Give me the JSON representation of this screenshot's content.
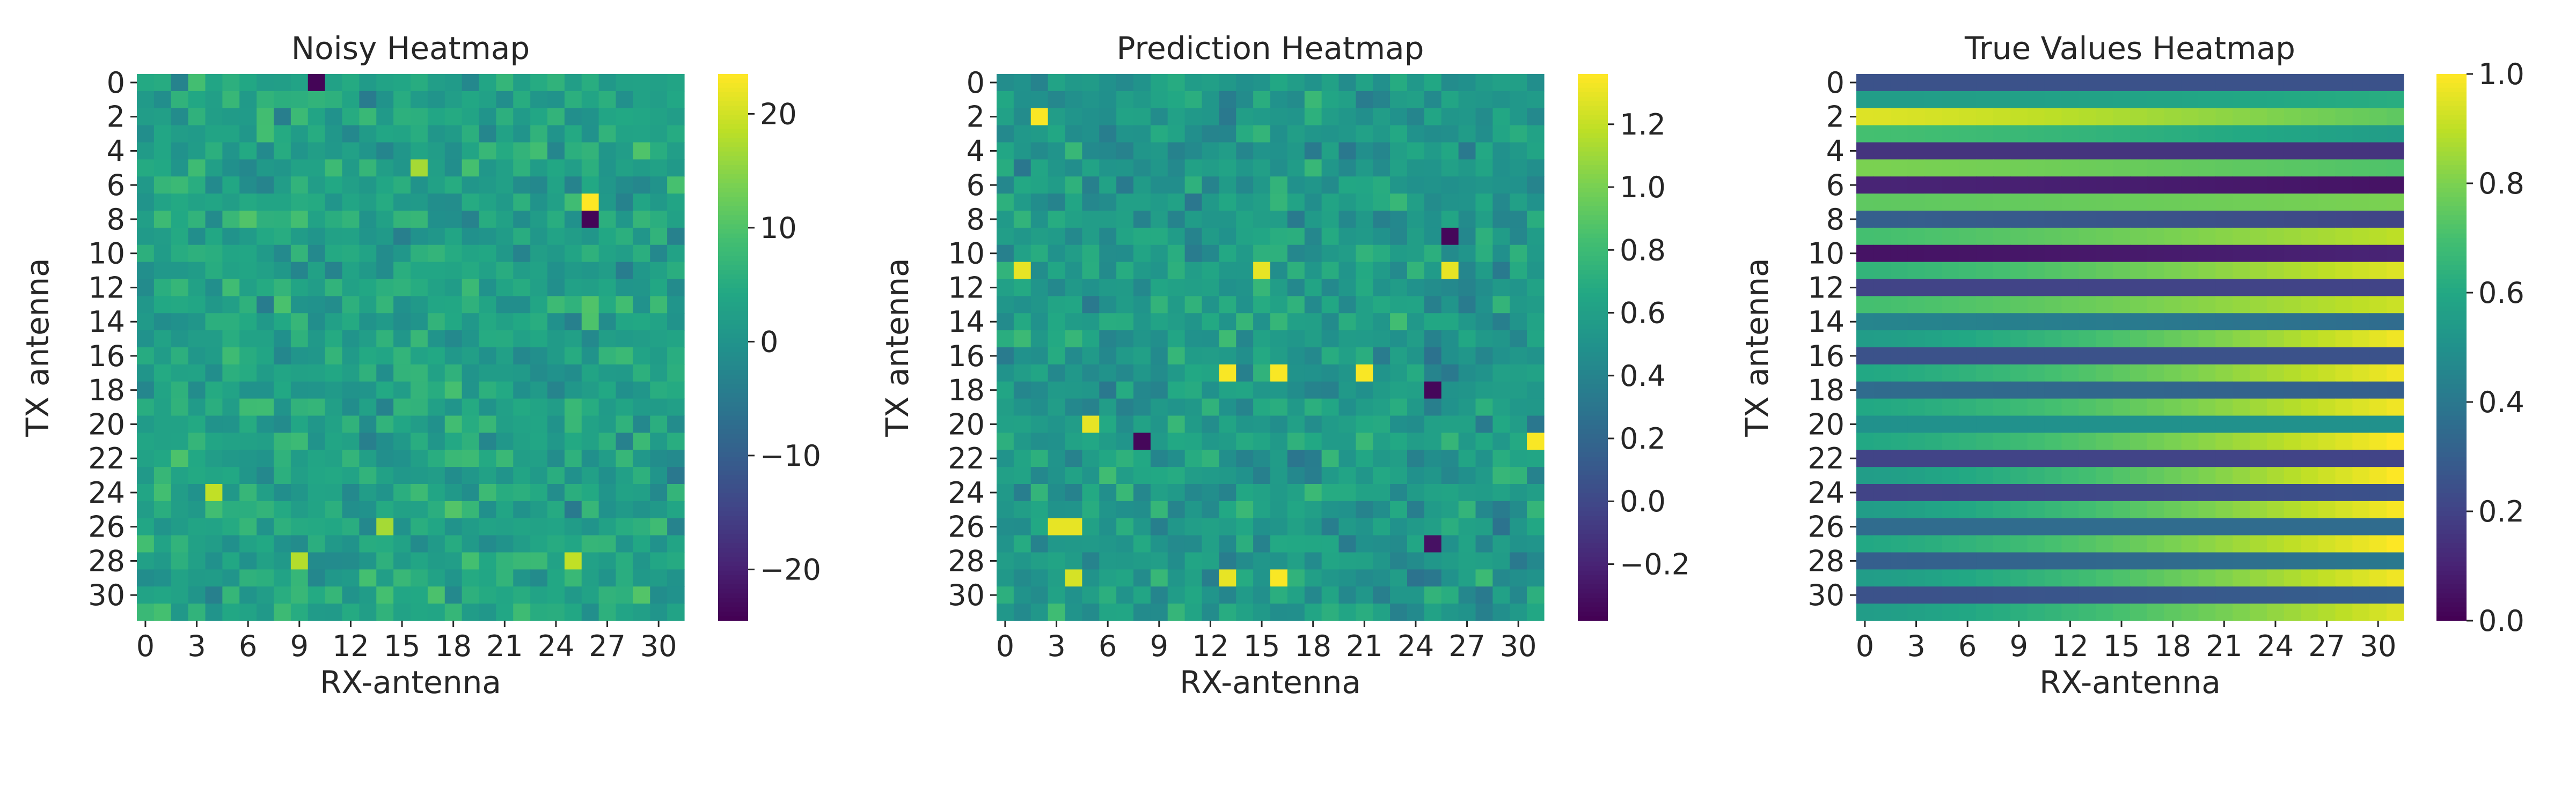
{
  "chart_data": [
    {
      "type": "heatmap",
      "title": "Noisy Heatmap",
      "xlabel": "RX-antenna",
      "ylabel": "TX antenna",
      "rows": 32,
      "cols": 32,
      "xticks": [
        0,
        3,
        6,
        9,
        12,
        15,
        18,
        21,
        24,
        27,
        30
      ],
      "yticks": [
        0,
        2,
        4,
        6,
        8,
        10,
        12,
        14,
        16,
        18,
        20,
        22,
        24,
        26,
        28,
        30
      ],
      "colorbar": {
        "range": [
          -24.5,
          23.5
        ],
        "ticks": [
          -20,
          -10,
          0,
          10,
          20
        ],
        "tick_labels": [
          "−20",
          "−10",
          "0",
          "10",
          "20"
        ],
        "colormap": "viridis"
      },
      "generator": {
        "kind": "noise",
        "mean": 3,
        "amp": 9,
        "seed": 7,
        "hot": [
          [
            7,
            26,
            23.5
          ],
          [
            8,
            26,
            -24
          ],
          [
            0,
            10,
            -24
          ],
          [
            24,
            4,
            19
          ],
          [
            28,
            9,
            18
          ],
          [
            28,
            25,
            19
          ],
          [
            5,
            16,
            17
          ],
          [
            26,
            14,
            17
          ]
        ]
      }
    },
    {
      "type": "heatmap",
      "title": "Prediction Heatmap",
      "xlabel": "RX-antenna",
      "ylabel": "TX antenna",
      "rows": 32,
      "cols": 32,
      "xticks": [
        0,
        3,
        6,
        9,
        12,
        15,
        18,
        21,
        24,
        27,
        30
      ],
      "yticks": [
        0,
        2,
        4,
        6,
        8,
        10,
        12,
        14,
        16,
        18,
        20,
        22,
        24,
        26,
        28,
        30
      ],
      "colorbar": {
        "range": [
          -0.38,
          1.36
        ],
        "ticks": [
          -0.2,
          0.0,
          0.2,
          0.4,
          0.6,
          0.8,
          1.0,
          1.2
        ],
        "tick_labels": [
          "−0.2",
          "0.0",
          "0.2",
          "0.4",
          "0.6",
          "0.8",
          "1.0",
          "1.2"
        ],
        "colormap": "viridis"
      },
      "generator": {
        "kind": "noise",
        "mean": 0.55,
        "amp": 0.32,
        "seed": 19,
        "hot": [
          [
            2,
            2,
            1.35
          ],
          [
            11,
            1,
            1.3
          ],
          [
            11,
            15,
            1.3
          ],
          [
            11,
            26,
            1.3
          ],
          [
            17,
            13,
            1.35
          ],
          [
            17,
            16,
            1.35
          ],
          [
            17,
            21,
            1.35
          ],
          [
            20,
            5,
            1.3
          ],
          [
            21,
            31,
            1.35
          ],
          [
            26,
            3,
            1.3
          ],
          [
            26,
            4,
            1.3
          ],
          [
            29,
            16,
            1.35
          ],
          [
            29,
            13,
            1.3
          ],
          [
            29,
            4,
            1.25
          ],
          [
            9,
            26,
            -0.35
          ],
          [
            21,
            8,
            -0.35
          ],
          [
            18,
            25,
            -0.35
          ],
          [
            27,
            25,
            -0.3
          ]
        ]
      }
    },
    {
      "type": "heatmap",
      "title": "True Values Heatmap",
      "xlabel": "RX-antenna",
      "ylabel": "TX antenna",
      "rows": 32,
      "cols": 32,
      "xticks": [
        0,
        3,
        6,
        9,
        12,
        15,
        18,
        21,
        24,
        27,
        30
      ],
      "yticks": [
        0,
        2,
        4,
        6,
        8,
        10,
        12,
        14,
        16,
        18,
        20,
        22,
        24,
        26,
        28,
        30
      ],
      "colorbar": {
        "range": [
          0.0,
          1.0
        ],
        "ticks": [
          0.0,
          0.2,
          0.4,
          0.6,
          0.8,
          1.0
        ],
        "tick_labels": [
          "0.0",
          "0.2",
          "0.4",
          "0.6",
          "0.8",
          "1.0"
        ],
        "colormap": "viridis"
      },
      "generator": {
        "kind": "rows",
        "row_start": [
          0.25,
          0.55,
          0.95,
          0.7,
          0.15,
          0.8,
          0.1,
          0.75,
          0.3,
          0.7,
          0.05,
          0.65,
          0.2,
          0.7,
          0.45,
          0.55,
          0.25,
          0.6,
          0.35,
          0.6,
          0.5,
          0.6,
          0.2,
          0.55,
          0.2,
          0.55,
          0.35,
          0.6,
          0.3,
          0.55,
          0.25,
          0.55
        ],
        "row_end": [
          0.25,
          0.62,
          0.75,
          0.55,
          0.15,
          0.72,
          0.05,
          0.8,
          0.2,
          0.9,
          0.1,
          0.95,
          0.2,
          0.92,
          0.35,
          0.98,
          0.25,
          0.98,
          0.3,
          0.98,
          0.5,
          1.0,
          0.2,
          1.0,
          0.25,
          0.99,
          0.35,
          1.0,
          0.4,
          0.98,
          0.3,
          0.95
        ]
      }
    }
  ]
}
